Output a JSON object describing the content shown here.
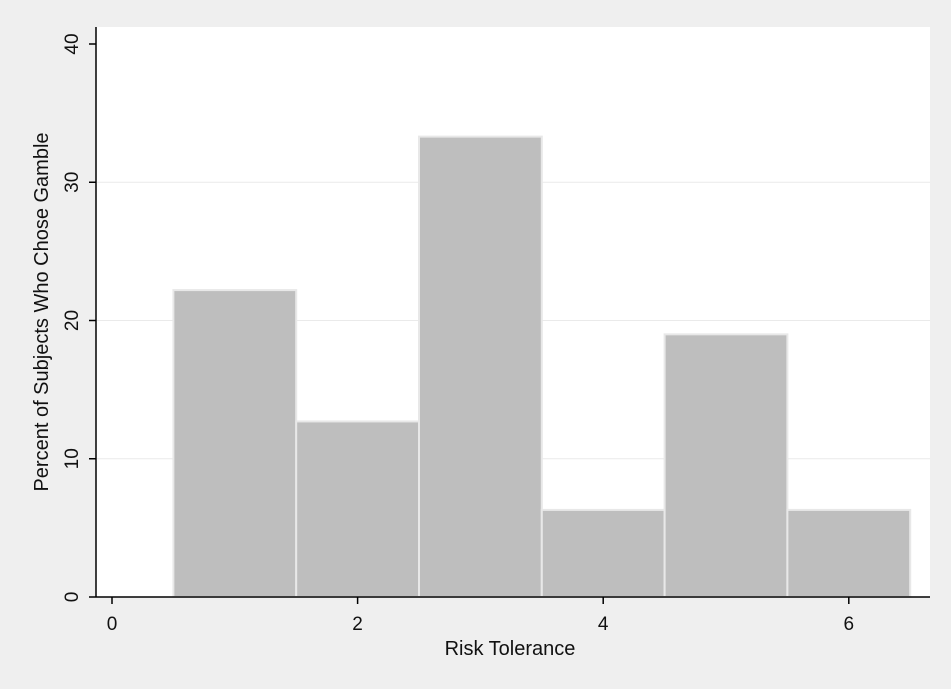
{
  "chart_data": {
    "type": "bar",
    "title": "",
    "xlabel": "Risk Tolerance",
    "ylabel": "Percent of Subjects Who Chose Gamble",
    "xlim": [
      0,
      6.5
    ],
    "ylim": [
      0,
      40
    ],
    "x_ticks": [
      0,
      2,
      4,
      6
    ],
    "y_ticks": [
      0,
      10,
      20,
      30,
      40
    ],
    "grid": "horizontal",
    "categories": [
      "1",
      "2",
      "3",
      "4",
      "5",
      "6"
    ],
    "x": [
      1,
      2,
      3,
      4,
      5,
      6
    ],
    "bar_width": 1,
    "values": [
      22.2,
      12.7,
      33.3,
      6.3,
      19.0,
      6.3
    ],
    "colors": {
      "background": "#efefef",
      "plot_area": "#ffffff",
      "bar_fill": "#bebebe",
      "bar_edge": "#e8e8e8",
      "gridline": "#eaeaea",
      "axis": "#000000"
    }
  }
}
